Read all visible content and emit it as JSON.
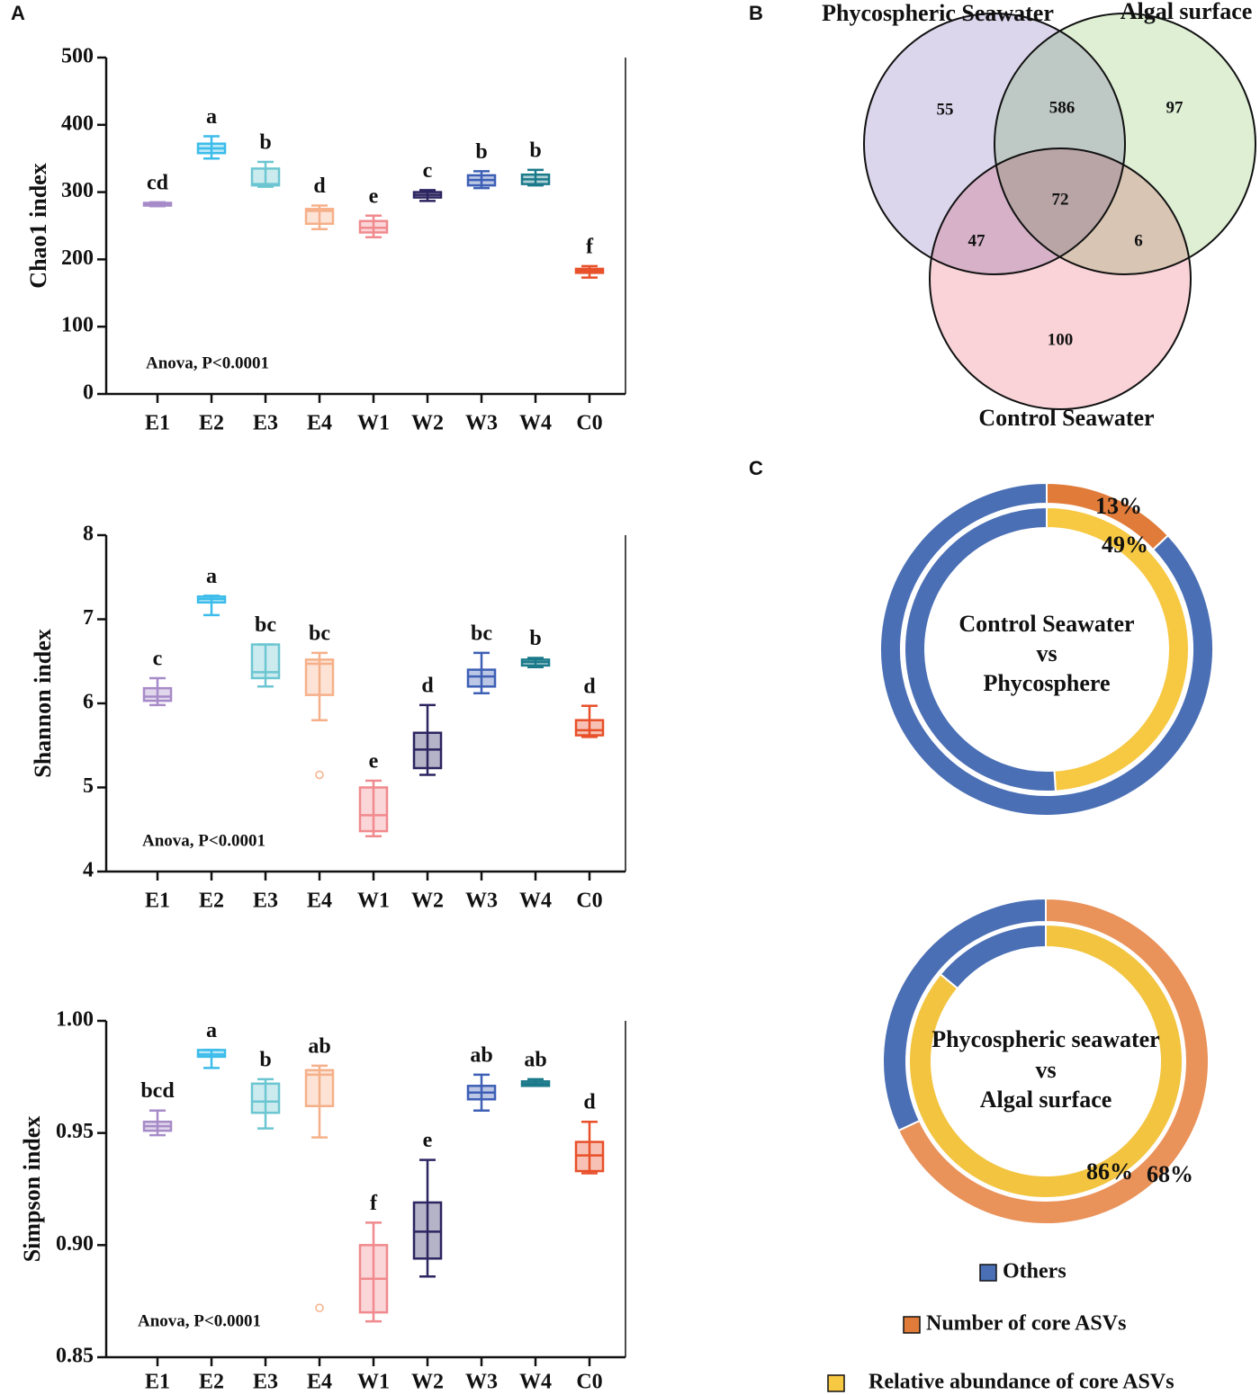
{
  "panels": [
    "A",
    "B",
    "C"
  ],
  "legend": [
    {
      "name": "Others",
      "color": "#4a6fb5"
    },
    {
      "name": "Number of core ASVs",
      "color": "#e07b39"
    },
    {
      "name": "Relative abundance of core ASVs",
      "color": "#f7c842"
    }
  ],
  "chart_data": [
    {
      "type": "box",
      "ylabel": "Chao1 index",
      "note": "Anova, P<0.0001",
      "categories": [
        "E1",
        "E2",
        "E3",
        "E4",
        "W1",
        "W2",
        "W3",
        "W4",
        "C0"
      ],
      "colors": [
        "#a78bc8",
        "#3cbcea",
        "#6cc6d1",
        "#f5b08a",
        "#f08a8e",
        "#2c2560",
        "#3d5fb5",
        "#1b7a8a",
        "#e8502a"
      ],
      "boxes": [
        {
          "low": 279,
          "q1": 280,
          "median": 282,
          "q3": 284,
          "high": 285
        },
        {
          "low": 350,
          "q1": 358,
          "median": 365,
          "q3": 372,
          "high": 383
        },
        {
          "low": 308,
          "q1": 310,
          "median": 312,
          "q3": 335,
          "high": 345
        },
        {
          "low": 245,
          "q1": 253,
          "median": 272,
          "q3": 275,
          "high": 280
        },
        {
          "low": 233,
          "q1": 240,
          "median": 247,
          "q3": 257,
          "high": 265
        },
        {
          "low": 287,
          "q1": 292,
          "median": 296,
          "q3": 300,
          "high": 303
        },
        {
          "low": 306,
          "q1": 310,
          "median": 318,
          "q3": 325,
          "high": 331
        },
        {
          "low": 310,
          "q1": 312,
          "median": 319,
          "q3": 326,
          "high": 333
        },
        {
          "low": 173,
          "q1": 180,
          "median": 183,
          "q3": 186,
          "high": 190
        }
      ],
      "letters": [
        "cd",
        "a",
        "b",
        "d",
        "e",
        "c",
        "b",
        "b",
        "f"
      ],
      "ylim": [
        0,
        500
      ],
      "yticks": [
        0,
        100,
        200,
        300,
        400,
        500
      ]
    },
    {
      "type": "box",
      "ylabel": "Shannon index",
      "note": "Anova, P<0.0001",
      "categories": [
        "E1",
        "E2",
        "E3",
        "E4",
        "W1",
        "W2",
        "W3",
        "W4",
        "C0"
      ],
      "colors": [
        "#a78bc8",
        "#3cbcea",
        "#6cc6d1",
        "#f5b08a",
        "#f08a8e",
        "#2c2560",
        "#3d5fb5",
        "#1b7a8a",
        "#e8502a"
      ],
      "boxes": [
        {
          "low": 5.98,
          "q1": 6.03,
          "median": 6.08,
          "q3": 6.18,
          "high": 6.3
        },
        {
          "low": 7.05,
          "q1": 7.2,
          "median": 7.24,
          "q3": 7.27,
          "high": 7.28
        },
        {
          "low": 6.2,
          "q1": 6.3,
          "median": 6.37,
          "q3": 6.7,
          "high": 6.7
        },
        {
          "low": 5.8,
          "q1": 6.1,
          "median": 6.47,
          "q3": 6.52,
          "high": 6.6,
          "outliers": [
            5.15
          ]
        },
        {
          "low": 4.42,
          "q1": 4.48,
          "median": 4.67,
          "q3": 5.0,
          "high": 5.08
        },
        {
          "low": 5.15,
          "q1": 5.23,
          "median": 5.45,
          "q3": 5.65,
          "high": 5.98
        },
        {
          "low": 6.12,
          "q1": 6.2,
          "median": 6.32,
          "q3": 6.4,
          "high": 6.6
        },
        {
          "low": 6.43,
          "q1": 6.45,
          "median": 6.49,
          "q3": 6.52,
          "high": 6.54
        },
        {
          "low": 5.6,
          "q1": 5.62,
          "median": 5.68,
          "q3": 5.8,
          "high": 5.97
        }
      ],
      "letters": [
        "c",
        "a",
        "bc",
        "bc",
        "e",
        "d",
        "bc",
        "b",
        "d"
      ],
      "ylim": [
        4,
        8
      ],
      "yticks": [
        4,
        5,
        6,
        7,
        8
      ]
    },
    {
      "type": "box",
      "ylabel": "Simpson index",
      "note": "Anova, P<0.0001",
      "categories": [
        "E1",
        "E2",
        "E3",
        "E4",
        "W1",
        "W2",
        "W3",
        "W4",
        "C0"
      ],
      "colors": [
        "#a78bc8",
        "#3cbcea",
        "#6cc6d1",
        "#f5b08a",
        "#f08a8e",
        "#2c2560",
        "#3d5fb5",
        "#1b7a8a",
        "#e8502a"
      ],
      "boxes": [
        {
          "low": 0.949,
          "q1": 0.951,
          "median": 0.953,
          "q3": 0.955,
          "high": 0.96
        },
        {
          "low": 0.979,
          "q1": 0.984,
          "median": 0.985,
          "q3": 0.987,
          "high": 0.987
        },
        {
          "low": 0.952,
          "q1": 0.959,
          "median": 0.964,
          "q3": 0.972,
          "high": 0.974
        },
        {
          "low": 0.948,
          "q1": 0.962,
          "median": 0.976,
          "q3": 0.978,
          "high": 0.98,
          "outliers": [
            0.872
          ]
        },
        {
          "low": 0.866,
          "q1": 0.87,
          "median": 0.885,
          "q3": 0.9,
          "high": 0.91
        },
        {
          "low": 0.886,
          "q1": 0.894,
          "median": 0.906,
          "q3": 0.919,
          "high": 0.938
        },
        {
          "low": 0.96,
          "q1": 0.965,
          "median": 0.968,
          "q3": 0.971,
          "high": 0.976
        },
        {
          "low": 0.971,
          "q1": 0.971,
          "median": 0.972,
          "q3": 0.973,
          "high": 0.974
        },
        {
          "low": 0.932,
          "q1": 0.933,
          "median": 0.94,
          "q3": 0.946,
          "high": 0.955
        }
      ],
      "letters": [
        "bcd",
        "a",
        "b",
        "ab",
        "f",
        "e",
        "ab",
        "ab",
        "d"
      ],
      "ylim": [
        0.85,
        1.0
      ],
      "yticks": [
        {
          "value": 0.85,
          "label": "0.85"
        },
        {
          "value": 0.9,
          "label": "0.90"
        },
        {
          "value": 0.95,
          "label": "0.95"
        },
        {
          "value": 1.0,
          "label": "1.00"
        }
      ]
    },
    {
      "type": "venn",
      "sets": [
        {
          "name": "Phycospheric Seawater",
          "color": "#cfc8e6"
        },
        {
          "name": "Algal surface",
          "color": "#d3eac6"
        },
        {
          "name": "Control  Seawater",
          "color": "#f7c4cb"
        }
      ],
      "values": [
        55,
        586,
        97,
        72,
        47,
        6,
        100
      ]
    },
    {
      "type": "donut",
      "center_text": [
        "Control  Seawater",
        "vs",
        "Phycosphere"
      ],
      "series": [
        {
          "name": "Number of core ASVs",
          "colors": [
            "#e07b39",
            "#4a6fb5"
          ],
          "values": [
            13,
            87
          ],
          "value_labels": [
            "13%",
            null
          ]
        },
        {
          "name": "Relative abundance of core ASVs",
          "colors": [
            "#f7c842",
            "#4a6fb5"
          ],
          "values": [
            49,
            51
          ],
          "value_labels": [
            "49%",
            null
          ]
        }
      ]
    },
    {
      "type": "donut",
      "center_text": [
        "Phycospheric seawater",
        "vs",
        "Algal surface"
      ],
      "series": [
        {
          "name": "Number of core ASVs",
          "colors": [
            "#e9925a",
            "#4a6fb5"
          ],
          "values": [
            68,
            32
          ],
          "value_labels": [
            "68%",
            null
          ]
        },
        {
          "name": "Relative abundance of core ASVs",
          "colors": [
            "#f2c440",
            "#4a6fb5"
          ],
          "values": [
            86,
            14
          ],
          "value_labels": [
            "86%",
            null
          ]
        }
      ]
    }
  ]
}
